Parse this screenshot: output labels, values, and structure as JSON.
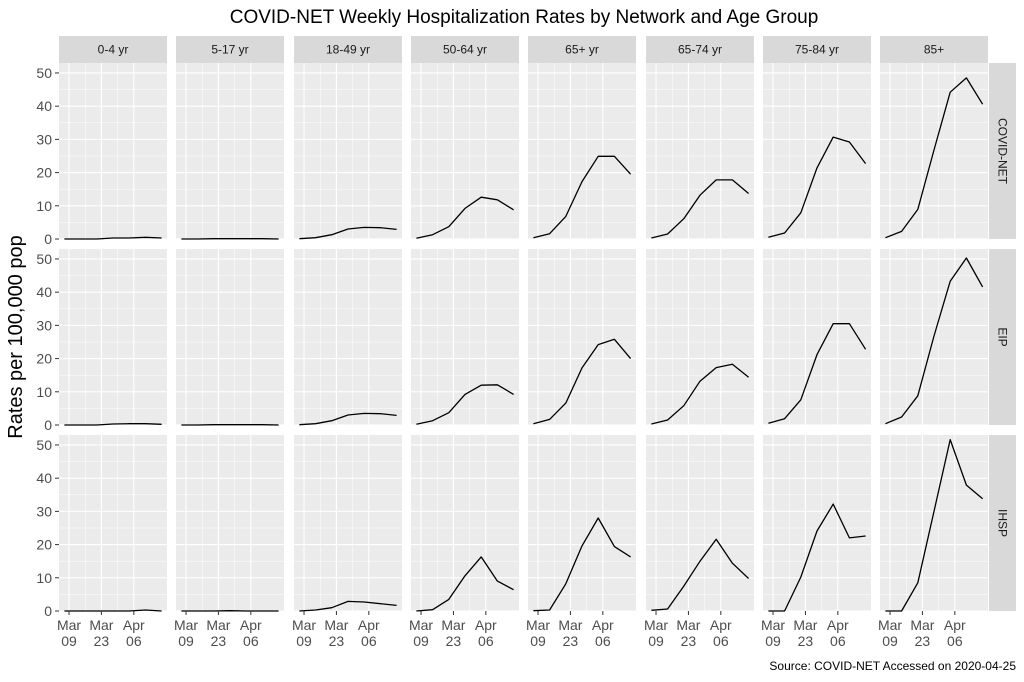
{
  "chart_data": {
    "type": "line",
    "title": "COVID-NET Weekly Hospitalization Rates by Network and Age Group",
    "ylabel": "Rates per 100,000 pop",
    "xlabel": "",
    "caption": "Source: COVID-NET Accessed on 2020-04-25",
    "ylim": [
      0,
      53
    ],
    "y_ticks": [
      0,
      10,
      20,
      30,
      40,
      50
    ],
    "x_ticks": [
      {
        "date": "2020-03-09",
        "line1": "Mar",
        "line2": "09"
      },
      {
        "date": "2020-03-23",
        "line1": "Mar",
        "line2": "23"
      },
      {
        "date": "2020-04-06",
        "line1": "Apr",
        "line2": "06"
      }
    ],
    "x": [
      "2020-03-07",
      "2020-03-14",
      "2020-03-21",
      "2020-03-28",
      "2020-04-04",
      "2020-04-11",
      "2020-04-18"
    ],
    "columns": [
      "0-4 yr",
      "5-17 yr",
      "18-49 yr",
      "50-64 yr",
      "65+ yr",
      "65-74 yr",
      "75-84 yr",
      "85+"
    ],
    "rows": [
      "COVID-NET",
      "EIP",
      "IHSP"
    ],
    "grid": true,
    "panels": [
      {
        "row": "COVID-NET",
        "column": "0-4 yr",
        "values": [
          0,
          0,
          0,
          0.3,
          0.3,
          0.5,
          0.3
        ]
      },
      {
        "row": "COVID-NET",
        "column": "5-17 yr",
        "values": [
          0,
          0,
          0.1,
          0.1,
          0.1,
          0.1,
          0
        ]
      },
      {
        "row": "COVID-NET",
        "column": "18-49 yr",
        "values": [
          0.1,
          0.4,
          1.3,
          3.0,
          3.5,
          3.4,
          2.9
        ]
      },
      {
        "row": "COVID-NET",
        "column": "50-64 yr",
        "values": [
          0.2,
          1.3,
          3.7,
          9.2,
          12.6,
          11.8,
          8.8
        ]
      },
      {
        "row": "COVID-NET",
        "column": "65+ yr",
        "values": [
          0.4,
          1.6,
          6.8,
          17.3,
          24.9,
          24.9,
          19.5
        ]
      },
      {
        "row": "COVID-NET",
        "column": "65-74 yr",
        "values": [
          0.3,
          1.5,
          6.1,
          13.2,
          17.8,
          17.8,
          13.7
        ]
      },
      {
        "row": "COVID-NET",
        "column": "75-84 yr",
        "values": [
          0.5,
          1.8,
          7.9,
          21.4,
          30.7,
          29.2,
          22.7
        ]
      },
      {
        "row": "COVID-NET",
        "column": "85+",
        "values": [
          0.4,
          2.3,
          8.9,
          26.8,
          44.2,
          48.5,
          40.6
        ]
      },
      {
        "row": "EIP",
        "column": "0-4 yr",
        "values": [
          0,
          0,
          0,
          0.3,
          0.4,
          0.4,
          0.2
        ]
      },
      {
        "row": "EIP",
        "column": "5-17 yr",
        "values": [
          0,
          0,
          0.1,
          0.1,
          0.1,
          0.1,
          0
        ]
      },
      {
        "row": "EIP",
        "column": "18-49 yr",
        "values": [
          0.1,
          0.4,
          1.3,
          3.0,
          3.5,
          3.4,
          2.9
        ]
      },
      {
        "row": "EIP",
        "column": "50-64 yr",
        "values": [
          0.2,
          1.3,
          3.7,
          9.2,
          12.0,
          12.1,
          9.2
        ]
      },
      {
        "row": "EIP",
        "column": "65+ yr",
        "values": [
          0.4,
          1.7,
          6.6,
          17.2,
          24.2,
          25.8,
          20.0
        ]
      },
      {
        "row": "EIP",
        "column": "65-74 yr",
        "values": [
          0.3,
          1.5,
          5.8,
          13.2,
          17.3,
          18.3,
          14.4
        ]
      },
      {
        "row": "EIP",
        "column": "75-84 yr",
        "values": [
          0.5,
          1.9,
          7.6,
          21.2,
          30.5,
          30.5,
          22.8
        ]
      },
      {
        "row": "EIP",
        "column": "85+",
        "values": [
          0.4,
          2.4,
          8.8,
          26.8,
          43.3,
          50.3,
          41.6
        ]
      },
      {
        "row": "IHSP",
        "column": "0-4 yr",
        "values": [
          0,
          0,
          0,
          0,
          0,
          0.3,
          0
        ]
      },
      {
        "row": "IHSP",
        "column": "5-17 yr",
        "values": [
          0,
          0,
          0,
          0.1,
          0,
          0,
          0
        ]
      },
      {
        "row": "IHSP",
        "column": "18-49 yr",
        "values": [
          0,
          0.3,
          1.0,
          2.9,
          2.7,
          2.2,
          1.7
        ]
      },
      {
        "row": "IHSP",
        "column": "50-64 yr",
        "values": [
          0,
          0.4,
          3.5,
          10.6,
          16.3,
          9.0,
          6.4
        ]
      },
      {
        "row": "IHSP",
        "column": "65+ yr",
        "values": [
          0.1,
          0.3,
          8.2,
          19.6,
          28.0,
          19.4,
          16.3
        ]
      },
      {
        "row": "IHSP",
        "column": "65-74 yr",
        "values": [
          0.2,
          0.6,
          7.5,
          15.0,
          21.6,
          14.4,
          9.8
        ]
      },
      {
        "row": "IHSP",
        "column": "75-84 yr",
        "values": [
          0,
          0,
          10.2,
          24.1,
          32.2,
          22.0,
          22.6
        ]
      },
      {
        "row": "IHSP",
        "column": "85+",
        "values": [
          0,
          0,
          8.5,
          30.0,
          51.6,
          37.9,
          33.8
        ]
      }
    ],
    "colors": {
      "panel_bg": "#ebebeb",
      "strip_bg": "#d9d9d9",
      "grid_major": "#ffffff",
      "line": "#000000",
      "tick_text": "#4d4d4d",
      "tick_mark": "#333333"
    }
  }
}
